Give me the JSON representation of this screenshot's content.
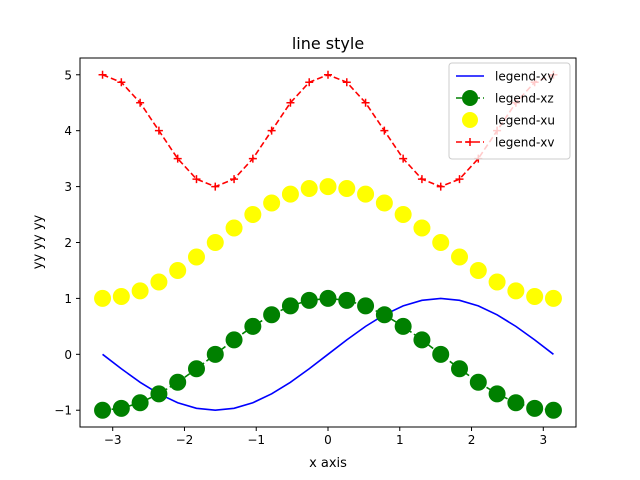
{
  "chart_data": {
    "type": "line",
    "title": "line style",
    "xlabel": "x axis",
    "ylabel": "yy yy yy",
    "xlim": [
      -3.4558,
      3.4558
    ],
    "ylim": [
      -1.3,
      5.3
    ],
    "grid": false,
    "legend_position": "top-right",
    "x_ticks": [
      -3,
      -2,
      -1,
      0,
      1,
      2,
      3
    ],
    "y_ticks": [
      -1,
      0,
      1,
      2,
      3,
      4,
      5
    ],
    "x_tick_labels": [
      "−3",
      "−2",
      "−1",
      "0",
      "1",
      "2",
      "3"
    ],
    "y_tick_labels": [
      "−1",
      "0",
      "1",
      "2",
      "3",
      "4",
      "5"
    ],
    "x": [
      -3.1416,
      -2.8798,
      -2.618,
      -2.3562,
      -2.0944,
      -1.8326,
      -1.5708,
      -1.309,
      -1.0472,
      -0.7854,
      -0.5236,
      -0.2618,
      0.0,
      0.2618,
      0.5236,
      0.7854,
      1.0472,
      1.309,
      1.5708,
      1.8326,
      2.0944,
      2.3562,
      2.618,
      2.8798,
      3.1416
    ],
    "series": [
      {
        "name": "legend-xy",
        "color": "#0000ff",
        "linestyle": "solid",
        "marker": "none",
        "values": [
          0.0,
          -0.2588,
          -0.5,
          -0.7071,
          -0.866,
          -0.9659,
          -1.0,
          -0.9659,
          -0.866,
          -0.7071,
          -0.5,
          -0.2588,
          0.0,
          0.2588,
          0.5,
          0.7071,
          0.866,
          0.9659,
          1.0,
          0.9659,
          0.866,
          0.7071,
          0.5,
          0.2588,
          0.0
        ]
      },
      {
        "name": "legend-xz",
        "color": "#008000",
        "linestyle": "dashed",
        "marker": "circle",
        "values": [
          -1.0,
          -0.9659,
          -0.866,
          -0.7071,
          -0.5,
          -0.2588,
          0.0,
          0.2588,
          0.5,
          0.7071,
          0.866,
          0.9659,
          1.0,
          0.9659,
          0.866,
          0.7071,
          0.5,
          0.2588,
          0.0,
          -0.2588,
          -0.5,
          -0.7071,
          -0.866,
          -0.9659,
          -1.0
        ]
      },
      {
        "name": "legend-xu",
        "color": "#ffff00",
        "linestyle": "none",
        "marker": "circle",
        "values": [
          1.0,
          1.0341,
          1.134,
          1.2929,
          1.5,
          1.7412,
          2.0,
          2.2588,
          2.5,
          2.7071,
          2.866,
          2.9659,
          3.0,
          2.9659,
          2.866,
          2.7071,
          2.5,
          2.2588,
          2.0,
          1.7412,
          1.5,
          1.2929,
          1.134,
          1.0341,
          1.0
        ]
      },
      {
        "name": "legend-xv",
        "color": "#ff0000",
        "linestyle": "dashed",
        "marker": "plus",
        "values": [
          5.0,
          4.866,
          4.5,
          4.0,
          3.5,
          3.134,
          3.0,
          3.134,
          3.5,
          4.0,
          4.5,
          4.866,
          5.0,
          4.866,
          4.5,
          4.0,
          3.5,
          3.134,
          3.0,
          3.134,
          3.5,
          4.0,
          4.5,
          4.866,
          5.0
        ]
      }
    ]
  }
}
